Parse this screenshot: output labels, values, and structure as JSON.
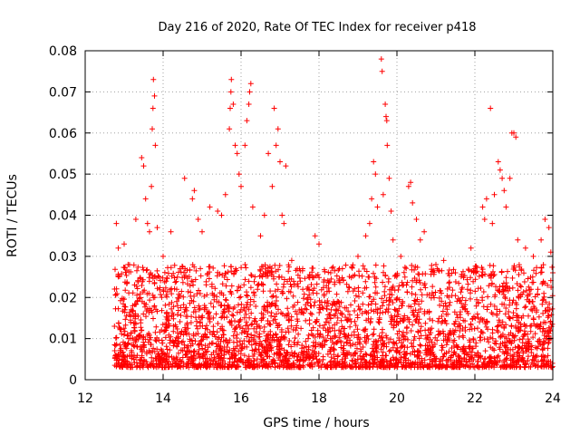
{
  "chart_data": {
    "type": "scatter",
    "title": "Day 216 of 2020, Rate Of TEC Index for receiver p418",
    "xlabel": "GPS time / hours",
    "ylabel": "ROTI / TECUs",
    "xlim": [
      12,
      24
    ],
    "ylim": [
      0,
      0.08
    ],
    "x_ticks": [
      12,
      14,
      16,
      18,
      20,
      22,
      24
    ],
    "x_tick_labels": [
      "12",
      "14",
      "16",
      "18",
      "20",
      "22",
      "24"
    ],
    "y_ticks": [
      0,
      0.01,
      0.02,
      0.03,
      0.04,
      0.05,
      0.06,
      0.07,
      0.08
    ],
    "y_tick_labels": [
      "0",
      "0.01",
      "0.02",
      "0.03",
      "0.04",
      "0.05",
      "0.06",
      "0.07",
      "0.08"
    ],
    "grid": true,
    "marker": "+",
    "color": "#ff0000",
    "series": [
      {
        "name": "ROTI",
        "x_start": 12.75,
        "x_end": 24.0,
        "background_range": [
          0.003,
          0.028
        ],
        "points": [
          [
            12.8,
            0.038
          ],
          [
            12.85,
            0.032
          ],
          [
            13.0,
            0.033
          ],
          [
            13.1,
            0.028
          ],
          [
            13.3,
            0.039
          ],
          [
            13.45,
            0.054
          ],
          [
            13.5,
            0.052
          ],
          [
            13.55,
            0.044
          ],
          [
            13.6,
            0.038
          ],
          [
            13.65,
            0.036
          ],
          [
            13.7,
            0.047
          ],
          [
            13.72,
            0.061
          ],
          [
            13.74,
            0.066
          ],
          [
            13.75,
            0.073
          ],
          [
            13.78,
            0.069
          ],
          [
            13.8,
            0.057
          ],
          [
            13.85,
            0.037
          ],
          [
            14.0,
            0.03
          ],
          [
            14.2,
            0.036
          ],
          [
            14.55,
            0.049
          ],
          [
            14.75,
            0.044
          ],
          [
            14.8,
            0.046
          ],
          [
            14.9,
            0.039
          ],
          [
            15.0,
            0.036
          ],
          [
            15.2,
            0.042
          ],
          [
            15.4,
            0.041
          ],
          [
            15.5,
            0.04
          ],
          [
            15.6,
            0.045
          ],
          [
            15.7,
            0.061
          ],
          [
            15.72,
            0.066
          ],
          [
            15.74,
            0.07
          ],
          [
            15.75,
            0.073
          ],
          [
            15.8,
            0.067
          ],
          [
            15.85,
            0.057
          ],
          [
            15.9,
            0.055
          ],
          [
            15.95,
            0.05
          ],
          [
            16.0,
            0.047
          ],
          [
            16.1,
            0.057
          ],
          [
            16.15,
            0.063
          ],
          [
            16.2,
            0.067
          ],
          [
            16.22,
            0.07
          ],
          [
            16.25,
            0.072
          ],
          [
            16.3,
            0.042
          ],
          [
            16.5,
            0.035
          ],
          [
            16.6,
            0.04
          ],
          [
            16.7,
            0.055
          ],
          [
            16.8,
            0.047
          ],
          [
            16.85,
            0.066
          ],
          [
            16.9,
            0.057
          ],
          [
            16.95,
            0.061
          ],
          [
            17.0,
            0.053
          ],
          [
            17.05,
            0.04
          ],
          [
            17.1,
            0.038
          ],
          [
            17.15,
            0.052
          ],
          [
            17.3,
            0.029
          ],
          [
            17.5,
            0.027
          ],
          [
            17.9,
            0.035
          ],
          [
            18.0,
            0.033
          ],
          [
            18.3,
            0.026
          ],
          [
            18.6,
            0.027
          ],
          [
            19.0,
            0.03
          ],
          [
            19.2,
            0.035
          ],
          [
            19.3,
            0.038
          ],
          [
            19.35,
            0.044
          ],
          [
            19.4,
            0.053
          ],
          [
            19.45,
            0.05
          ],
          [
            19.5,
            0.042
          ],
          [
            19.6,
            0.078
          ],
          [
            19.62,
            0.075
          ],
          [
            19.65,
            0.045
          ],
          [
            19.7,
            0.067
          ],
          [
            19.72,
            0.064
          ],
          [
            19.74,
            0.063
          ],
          [
            19.75,
            0.057
          ],
          [
            19.8,
            0.049
          ],
          [
            19.85,
            0.041
          ],
          [
            19.9,
            0.034
          ],
          [
            20.1,
            0.03
          ],
          [
            20.3,
            0.047
          ],
          [
            20.35,
            0.048
          ],
          [
            20.4,
            0.043
          ],
          [
            20.5,
            0.039
          ],
          [
            20.6,
            0.034
          ],
          [
            20.7,
            0.036
          ],
          [
            21.0,
            0.028
          ],
          [
            21.2,
            0.029
          ],
          [
            21.5,
            0.026
          ],
          [
            21.9,
            0.032
          ],
          [
            22.0,
            0.027
          ],
          [
            22.2,
            0.042
          ],
          [
            22.25,
            0.039
          ],
          [
            22.3,
            0.044
          ],
          [
            22.4,
            0.066
          ],
          [
            22.45,
            0.038
          ],
          [
            22.5,
            0.045
          ],
          [
            22.6,
            0.053
          ],
          [
            22.65,
            0.051
          ],
          [
            22.7,
            0.049
          ],
          [
            22.75,
            0.046
          ],
          [
            22.8,
            0.042
          ],
          [
            22.9,
            0.049
          ],
          [
            22.95,
            0.06
          ],
          [
            23.0,
            0.06
          ],
          [
            23.05,
            0.059
          ],
          [
            23.1,
            0.034
          ],
          [
            23.3,
            0.032
          ],
          [
            23.5,
            0.03
          ],
          [
            23.7,
            0.034
          ],
          [
            23.8,
            0.039
          ],
          [
            23.9,
            0.037
          ],
          [
            23.95,
            0.031
          ],
          [
            24.0,
            0.026
          ]
        ]
      }
    ]
  }
}
